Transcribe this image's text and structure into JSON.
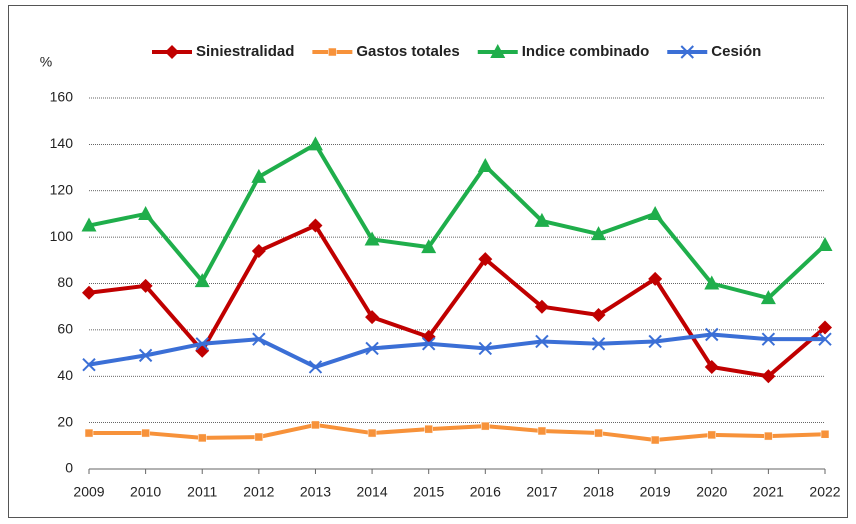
{
  "chart_data": {
    "type": "line",
    "y_label": "%",
    "categories": [
      "2009",
      "2010",
      "2011",
      "2012",
      "2013",
      "2014",
      "2015",
      "2016",
      "2017",
      "2018",
      "2019",
      "2020",
      "2021",
      "2022"
    ],
    "series": [
      {
        "name": "Siniestralidad",
        "color": "#c00000",
        "marker": "diamond",
        "values": [
          76,
          79,
          51,
          94,
          105,
          65.5,
          57,
          90.5,
          70,
          66.4,
          82,
          44,
          40,
          61
        ]
      },
      {
        "name": "Gastos totales",
        "color": "#f7923a",
        "marker": "square",
        "values": [
          15.5,
          15.5,
          13.4,
          13.8,
          19,
          15.5,
          17.2,
          18.5,
          16.4,
          15.5,
          12.5,
          14.7,
          14.2,
          15
        ]
      },
      {
        "name": "Indice combinado",
        "color": "#1fae4b",
        "marker": "triangle",
        "values": [
          105,
          110,
          81,
          126,
          140,
          99,
          95.7,
          130.7,
          107,
          101.3,
          110,
          80,
          73.7,
          96.6
        ]
      },
      {
        "name": "Cesión",
        "color": "#3b6fd6",
        "marker": "x",
        "values": [
          45,
          49,
          54,
          56,
          44,
          52,
          54,
          52,
          55,
          54,
          55,
          58,
          56,
          56
        ]
      }
    ],
    "ylim": [
      0,
      160
    ],
    "yticks": [
      0,
      20,
      40,
      60,
      80,
      100,
      120,
      140,
      160
    ],
    "grid": true,
    "legend": "top"
  }
}
